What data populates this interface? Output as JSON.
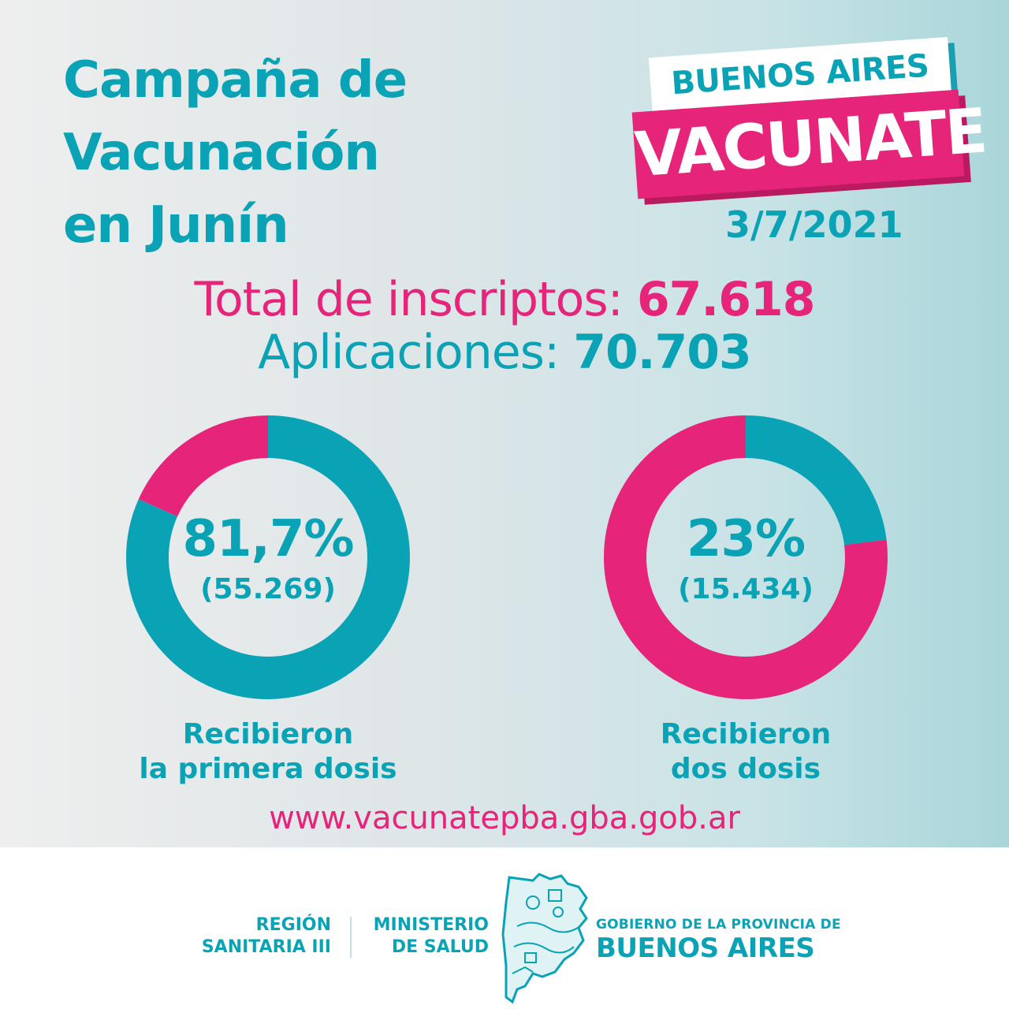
{
  "header": {
    "title_lines": [
      "Campaña de",
      "Vacunación",
      "en Junín"
    ],
    "badge_top": "BUENOS AIRES",
    "badge_bottom": "VACUNATE",
    "date": "3/7/2021"
  },
  "totals": {
    "inscriptos_label": "Total de inscriptos:",
    "inscriptos_value": "67.618",
    "aplicaciones_label": "Aplicaciones:",
    "aplicaciones_value": "70.703"
  },
  "chart_data": [
    {
      "type": "pie",
      "slices": [
        {
          "label": "Recibieron la primera dosis",
          "value": 81.7,
          "color": "#0aa3b6"
        },
        {
          "label": "Resto",
          "value": 18.3,
          "color": "#e5247a"
        }
      ],
      "percent_label": "81,7%",
      "count_label": "(55.269)",
      "caption_lines": [
        "Recibieron",
        "la primera dosis"
      ]
    },
    {
      "type": "pie",
      "slices": [
        {
          "label": "Recibieron dos dosis",
          "value": 23,
          "color": "#0aa3b6"
        },
        {
          "label": "Resto",
          "value": 77,
          "color": "#e5247a"
        }
      ],
      "percent_label": "23%",
      "count_label": "(15.434)",
      "caption_lines": [
        "Recibieron",
        "dos dosis"
      ]
    }
  ],
  "url": "www.vacunatepba.gba.gob.ar",
  "footer": {
    "region_lines": [
      "REGIÓN",
      "SANITARIA III"
    ],
    "ministerio_lines": [
      "MINISTERIO",
      "DE SALUD"
    ],
    "gov_small": "GOBIERNO DE LA PROVINCIA DE",
    "gov_big": "BUENOS AIRES",
    "map_icon": "buenos-aires-province-map-icon"
  },
  "colors": {
    "teal": "#0aa3b6",
    "magenta": "#e5247a"
  }
}
